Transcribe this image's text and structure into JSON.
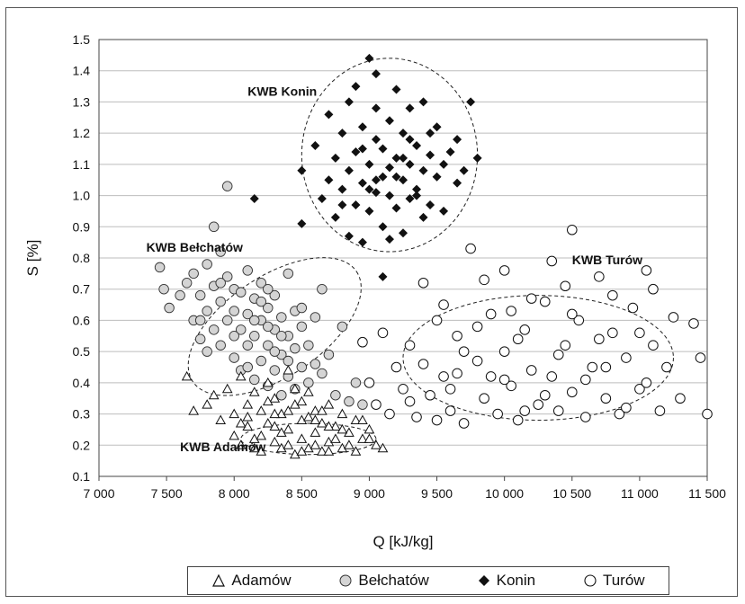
{
  "chart_data": {
    "type": "scatter",
    "xlabel": "Q [kJ/kg]",
    "ylabel": "S [%]",
    "xlim": [
      7000,
      11500
    ],
    "ylim": [
      0.1,
      1.5
    ],
    "x_ticks": [
      "7 000",
      "7 500",
      "8 000",
      "8 500",
      "9 000",
      "9 500",
      "10 000",
      "10 500",
      "11 000",
      "11 500"
    ],
    "y_ticks": [
      "0.1",
      "0.2",
      "0.3",
      "0.4",
      "0.5",
      "0.6",
      "0.7",
      "0.8",
      "0.9",
      "1.0",
      "1.1",
      "1.2",
      "1.3",
      "1.4",
      "1.5"
    ],
    "grid": "horizontal",
    "legend_position": "bottom",
    "annotations": [
      "KWB Konin",
      "KWB Bełchatów",
      "KWB Turów",
      "KWB Adamów"
    ],
    "series": [
      {
        "name": "Adamów",
        "marker": "triangle-open",
        "color": "#111111",
        "points": [
          [
            7650,
            0.42
          ],
          [
            7700,
            0.31
          ],
          [
            7800,
            0.33
          ],
          [
            7850,
            0.36
          ],
          [
            7900,
            0.28
          ],
          [
            7950,
            0.38
          ],
          [
            8000,
            0.23
          ],
          [
            8000,
            0.3
          ],
          [
            8050,
            0.42
          ],
          [
            8050,
            0.2
          ],
          [
            8100,
            0.33
          ],
          [
            8100,
            0.26
          ],
          [
            8150,
            0.37
          ],
          [
            8150,
            0.22
          ],
          [
            8200,
            0.31
          ],
          [
            8200,
            0.18
          ],
          [
            8250,
            0.4
          ],
          [
            8250,
            0.27
          ],
          [
            8300,
            0.35
          ],
          [
            8300,
            0.21
          ],
          [
            8350,
            0.3
          ],
          [
            8350,
            0.19
          ],
          [
            8400,
            0.44
          ],
          [
            8400,
            0.25
          ],
          [
            8450,
            0.33
          ],
          [
            8450,
            0.17
          ],
          [
            8500,
            0.28
          ],
          [
            8500,
            0.22
          ],
          [
            8550,
            0.37
          ],
          [
            8550,
            0.19
          ],
          [
            8600,
            0.31
          ],
          [
            8600,
            0.24
          ],
          [
            8650,
            0.27
          ],
          [
            8650,
            0.18
          ],
          [
            8700,
            0.33
          ],
          [
            8700,
            0.21
          ],
          [
            8750,
            0.26
          ],
          [
            8800,
            0.3
          ],
          [
            8800,
            0.19
          ],
          [
            8850,
            0.24
          ],
          [
            8900,
            0.28
          ],
          [
            8900,
            0.18
          ],
          [
            8950,
            0.22
          ],
          [
            9000,
            0.25
          ],
          [
            9050,
            0.2
          ],
          [
            9100,
            0.19
          ],
          [
            8100,
            0.29
          ],
          [
            8250,
            0.34
          ],
          [
            8400,
            0.2
          ],
          [
            8550,
            0.29
          ],
          [
            8700,
            0.26
          ],
          [
            8850,
            0.2
          ],
          [
            8150,
            0.19
          ],
          [
            8300,
            0.26
          ],
          [
            8450,
            0.38
          ],
          [
            8600,
            0.2
          ],
          [
            8750,
            0.22
          ],
          [
            8950,
            0.28
          ],
          [
            8350,
            0.24
          ],
          [
            8500,
            0.34
          ],
          [
            8650,
            0.31
          ],
          [
            8050,
            0.27
          ],
          [
            8200,
            0.23
          ],
          [
            8800,
            0.25
          ],
          [
            9000,
            0.22
          ],
          [
            8300,
            0.3
          ],
          [
            8400,
            0.31
          ],
          [
            8500,
            0.18
          ],
          [
            8600,
            0.28
          ],
          [
            8700,
            0.18
          ]
        ]
      },
      {
        "name": "Bełchatów",
        "marker": "circle-light",
        "color": "#d4d4d4",
        "points": [
          [
            7450,
            0.77
          ],
          [
            7480,
            0.7
          ],
          [
            7520,
            0.64
          ],
          [
            7600,
            0.68
          ],
          [
            7650,
            0.72
          ],
          [
            7700,
            0.6
          ],
          [
            7700,
            0.75
          ],
          [
            7750,
            0.54
          ],
          [
            7750,
            0.68
          ],
          [
            7800,
            0.5
          ],
          [
            7800,
            0.63
          ],
          [
            7800,
            0.78
          ],
          [
            7850,
            0.57
          ],
          [
            7850,
            0.71
          ],
          [
            7900,
            0.52
          ],
          [
            7900,
            0.66
          ],
          [
            7900,
            0.82
          ],
          [
            7950,
            0.6
          ],
          [
            7950,
            0.74
          ],
          [
            8000,
            0.48
          ],
          [
            8000,
            0.63
          ],
          [
            8000,
            0.7
          ],
          [
            8050,
            0.44
          ],
          [
            8050,
            0.57
          ],
          [
            8050,
            0.69
          ],
          [
            8100,
            0.52
          ],
          [
            8100,
            0.62
          ],
          [
            8100,
            0.76
          ],
          [
            8150,
            0.41
          ],
          [
            8150,
            0.55
          ],
          [
            8150,
            0.67
          ],
          [
            8200,
            0.47
          ],
          [
            8200,
            0.6
          ],
          [
            8200,
            0.72
          ],
          [
            8250,
            0.39
          ],
          [
            8250,
            0.52
          ],
          [
            8250,
            0.64
          ],
          [
            8300,
            0.44
          ],
          [
            8300,
            0.57
          ],
          [
            8300,
            0.68
          ],
          [
            8350,
            0.36
          ],
          [
            8350,
            0.49
          ],
          [
            8350,
            0.61
          ],
          [
            8400,
            0.42
          ],
          [
            8400,
            0.55
          ],
          [
            8400,
            0.75
          ],
          [
            8450,
            0.38
          ],
          [
            8450,
            0.51
          ],
          [
            8450,
            0.63
          ],
          [
            8500,
            0.45
          ],
          [
            8500,
            0.58
          ],
          [
            8550,
            0.4
          ],
          [
            8550,
            0.52
          ],
          [
            8600,
            0.46
          ],
          [
            8600,
            0.61
          ],
          [
            8650,
            0.43
          ],
          [
            8650,
            0.7
          ],
          [
            8700,
            0.49
          ],
          [
            8750,
            0.36
          ],
          [
            8800,
            0.58
          ],
          [
            8850,
            0.34
          ],
          [
            8900,
            0.4
          ],
          [
            8950,
            0.33
          ],
          [
            7950,
            1.03
          ],
          [
            7850,
            0.9
          ],
          [
            7900,
            0.72
          ],
          [
            8000,
            0.55
          ],
          [
            8100,
            0.45
          ],
          [
            8250,
            0.58
          ],
          [
            8350,
            0.55
          ],
          [
            8500,
            0.64
          ],
          [
            8250,
            0.7
          ],
          [
            8150,
            0.6
          ],
          [
            8300,
            0.5
          ],
          [
            8400,
            0.47
          ],
          [
            8200,
            0.66
          ],
          [
            7750,
            0.6
          ]
        ]
      },
      {
        "name": "Konin",
        "marker": "diamond-filled",
        "color": "#111111",
        "points": [
          [
            8150,
            0.99
          ],
          [
            8500,
            0.91
          ],
          [
            8500,
            1.08
          ],
          [
            8600,
            1.16
          ],
          [
            8650,
            0.99
          ],
          [
            8700,
            1.05
          ],
          [
            8700,
            1.26
          ],
          [
            8750,
            1.12
          ],
          [
            8750,
            0.93
          ],
          [
            8800,
            1.2
          ],
          [
            8800,
            1.02
          ],
          [
            8850,
            1.08
          ],
          [
            8850,
            0.87
          ],
          [
            8900,
            1.14
          ],
          [
            8900,
            0.97
          ],
          [
            8900,
            1.35
          ],
          [
            8950,
            1.04
          ],
          [
            8950,
            1.22
          ],
          [
            8950,
            0.85
          ],
          [
            9000,
            1.44
          ],
          [
            9000,
            1.1
          ],
          [
            9000,
            0.95
          ],
          [
            9050,
            1.18
          ],
          [
            9050,
            1.01
          ],
          [
            9050,
            1.28
          ],
          [
            9100,
            1.06
          ],
          [
            9100,
            0.9
          ],
          [
            9100,
            1.15
          ],
          [
            9150,
            1.0
          ],
          [
            9150,
            1.24
          ],
          [
            9150,
            0.86
          ],
          [
            9200,
            1.12
          ],
          [
            9200,
            0.96
          ],
          [
            9200,
            1.34
          ],
          [
            9250,
            1.05
          ],
          [
            9250,
            1.2
          ],
          [
            9250,
            0.88
          ],
          [
            9300,
            1.1
          ],
          [
            9300,
            0.99
          ],
          [
            9350,
            1.16
          ],
          [
            9350,
            1.02
          ],
          [
            9400,
            1.08
          ],
          [
            9400,
            0.93
          ],
          [
            9400,
            1.3
          ],
          [
            9450,
            1.13
          ],
          [
            9450,
            0.97
          ],
          [
            9500,
            1.06
          ],
          [
            9500,
            1.22
          ],
          [
            9550,
            1.1
          ],
          [
            9550,
            0.95
          ],
          [
            9600,
            1.14
          ],
          [
            9650,
            1.04
          ],
          [
            9650,
            1.18
          ],
          [
            9700,
            1.08
          ],
          [
            9750,
            1.3
          ],
          [
            9800,
            1.12
          ],
          [
            9100,
            0.74
          ],
          [
            9050,
            1.39
          ],
          [
            8850,
            1.3
          ],
          [
            9300,
            1.28
          ],
          [
            8950,
            1.15
          ],
          [
            9150,
            1.09
          ],
          [
            9250,
            1.12
          ],
          [
            9050,
            1.05
          ],
          [
            9350,
            1.0
          ],
          [
            9450,
            1.2
          ],
          [
            8800,
            0.97
          ],
          [
            9000,
            1.02
          ],
          [
            9200,
            1.06
          ],
          [
            9300,
            1.18
          ]
        ]
      },
      {
        "name": "Turów",
        "marker": "circle-open",
        "color": "#111111",
        "points": [
          [
            8950,
            0.53
          ],
          [
            9000,
            0.4
          ],
          [
            9050,
            0.33
          ],
          [
            9100,
            0.56
          ],
          [
            9150,
            0.3
          ],
          [
            9200,
            0.45
          ],
          [
            9250,
            0.38
          ],
          [
            9300,
            0.52
          ],
          [
            9350,
            0.29
          ],
          [
            9400,
            0.72
          ],
          [
            9450,
            0.36
          ],
          [
            9500,
            0.6
          ],
          [
            9550,
            0.42
          ],
          [
            9600,
            0.31
          ],
          [
            9650,
            0.55
          ],
          [
            9700,
            0.27
          ],
          [
            9750,
            0.83
          ],
          [
            9800,
            0.47
          ],
          [
            9850,
            0.35
          ],
          [
            9900,
            0.62
          ],
          [
            9950,
            0.3
          ],
          [
            10000,
            0.5
          ],
          [
            10000,
            0.76
          ],
          [
            10050,
            0.39
          ],
          [
            10100,
            0.28
          ],
          [
            10150,
            0.57
          ],
          [
            10200,
            0.44
          ],
          [
            10250,
            0.33
          ],
          [
            10300,
            0.66
          ],
          [
            10350,
            0.79
          ],
          [
            10400,
            0.31
          ],
          [
            10450,
            0.52
          ],
          [
            10500,
            0.89
          ],
          [
            10500,
            0.37
          ],
          [
            10550,
            0.6
          ],
          [
            10600,
            0.29
          ],
          [
            10650,
            0.45
          ],
          [
            10700,
            0.74
          ],
          [
            10750,
            0.35
          ],
          [
            10800,
            0.56
          ],
          [
            10850,
            0.3
          ],
          [
            10900,
            0.48
          ],
          [
            10950,
            0.64
          ],
          [
            11000,
            0.38
          ],
          [
            11050,
            0.76
          ],
          [
            11100,
            0.52
          ],
          [
            11150,
            0.31
          ],
          [
            11200,
            0.45
          ],
          [
            11250,
            0.61
          ],
          [
            11300,
            0.35
          ],
          [
            11400,
            0.59
          ],
          [
            11450,
            0.48
          ],
          [
            11500,
            0.3
          ],
          [
            9400,
            0.46
          ],
          [
            9600,
            0.38
          ],
          [
            9800,
            0.58
          ],
          [
            10000,
            0.41
          ],
          [
            10200,
            0.67
          ],
          [
            10400,
            0.49
          ],
          [
            10600,
            0.41
          ],
          [
            10800,
            0.68
          ],
          [
            11000,
            0.56
          ],
          [
            9500,
            0.28
          ],
          [
            9700,
            0.5
          ],
          [
            9900,
            0.42
          ],
          [
            10100,
            0.54
          ],
          [
            10300,
            0.36
          ],
          [
            10500,
            0.62
          ],
          [
            10700,
            0.54
          ],
          [
            10900,
            0.32
          ],
          [
            11100,
            0.7
          ],
          [
            9300,
            0.34
          ],
          [
            9550,
            0.65
          ],
          [
            9850,
            0.73
          ],
          [
            10150,
            0.31
          ],
          [
            10450,
            0.71
          ],
          [
            10750,
            0.45
          ],
          [
            11050,
            0.4
          ],
          [
            9650,
            0.43
          ],
          [
            10050,
            0.63
          ],
          [
            10350,
            0.42
          ]
        ]
      }
    ]
  }
}
